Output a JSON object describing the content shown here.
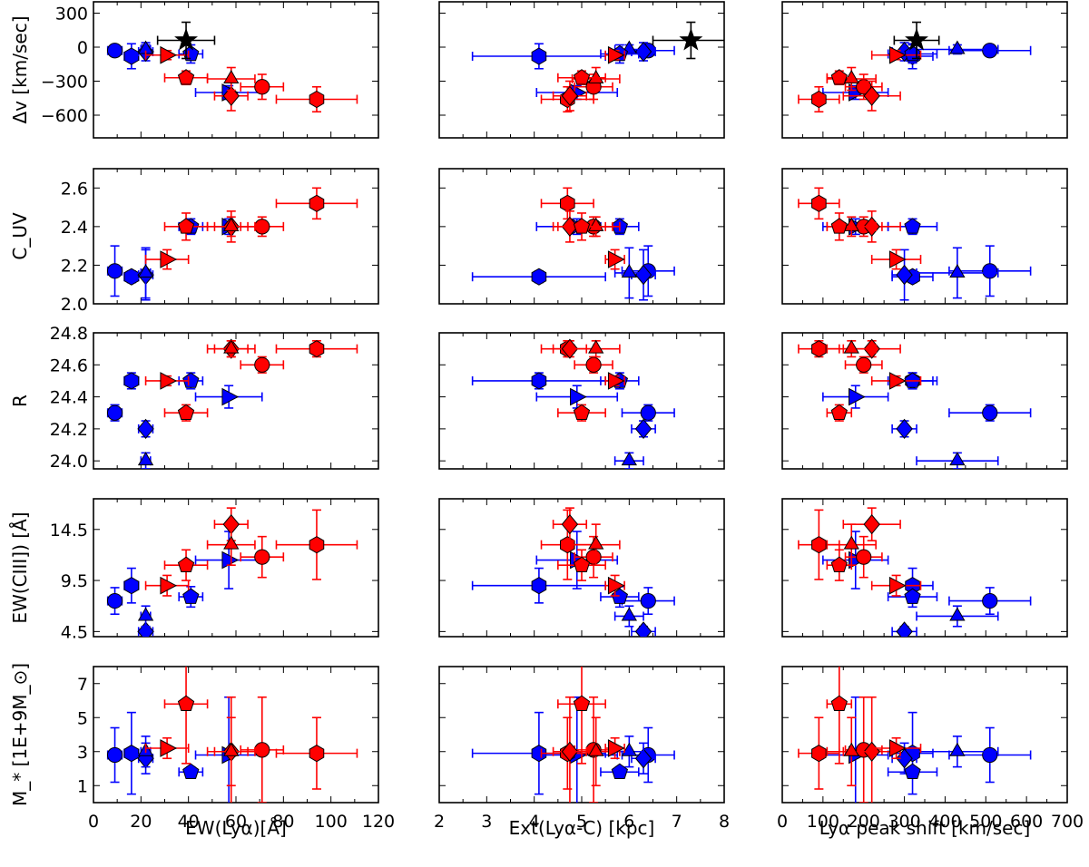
{
  "figure": {
    "colors": {
      "red": "#ff0000",
      "blue": "#0000ff",
      "black": "#000000"
    },
    "x_labels": [
      "EW(Lyα)[Å]",
      "Ext(Lyα-C) [kpc]",
      "Lyα peak shift [km/sec]"
    ],
    "y_labels": [
      "Δv [km/sec]",
      "C_UV",
      "R",
      "EW(CIII]) [Å]",
      "M_* [1E+9M_⊙]"
    ]
  },
  "chart_data": {
    "type": "scatter",
    "layout": "5 rows x 3 columns of scatter panels with shared x axes per column and shared y axes per row",
    "x_axes": [
      {
        "label": "EW(Lyα)[Å]",
        "lim": [
          0,
          120
        ],
        "ticks": [
          0,
          20,
          40,
          60,
          80,
          100,
          120
        ],
        "tick_labels": [
          "0",
          "20",
          "40",
          "60",
          "80",
          "100",
          "120"
        ]
      },
      {
        "label": "Ext(Lyα-C) [kpc]",
        "lim": [
          2,
          8
        ],
        "ticks": [
          2,
          3,
          4,
          5,
          6,
          7,
          8
        ],
        "tick_labels": [
          "2",
          "3",
          "4",
          "5",
          "6",
          "7",
          "8"
        ]
      },
      {
        "label": "Lyα peak shift [km/sec]",
        "lim": [
          0,
          700
        ],
        "ticks": [
          0,
          100,
          200,
          300,
          400,
          500,
          600,
          700
        ],
        "tick_labels": [
          "0",
          "100",
          "200",
          "300",
          "400",
          "500",
          "600",
          "700"
        ]
      }
    ],
    "y_axes": [
      {
        "label": "Δv [km/sec]",
        "lim": [
          -800,
          400
        ],
        "ticks": [
          -600,
          -300,
          0,
          300
        ],
        "tick_labels": [
          "−600",
          "−300",
          "0",
          "300"
        ]
      },
      {
        "label": "C_UV",
        "lim": [
          2.0,
          2.7
        ],
        "ticks": [
          2.0,
          2.2,
          2.4,
          2.6
        ],
        "tick_labels": [
          "2.0",
          "2.2",
          "2.4",
          "2.6"
        ]
      },
      {
        "label": "R",
        "lim": [
          23.95,
          24.8
        ],
        "ticks": [
          24.0,
          24.2,
          24.4,
          24.6,
          24.8
        ],
        "tick_labels": [
          "24.0",
          "24.2",
          "24.4",
          "24.6",
          "24.8"
        ]
      },
      {
        "label": "EW(CIII]) [Å]",
        "lim": [
          4.0,
          17.5
        ],
        "ticks": [
          4.5,
          9.5,
          14.5
        ],
        "tick_labels": [
          "4.5",
          "9.5",
          "14.5"
        ]
      },
      {
        "label": "M_* [1E+9M_⊙]",
        "lim": [
          0,
          8
        ],
        "ticks": [
          1,
          3,
          5,
          7
        ],
        "tick_labels": [
          "1",
          "3",
          "5",
          "7"
        ]
      }
    ],
    "objects": [
      {
        "id": "B-circle",
        "color": "blue",
        "marker": "circle",
        "ew": 9,
        "ew_err": 3,
        "ext": 6.4,
        "ext_err": 0.55,
        "shift": 510,
        "shift_err": 100,
        "dv": -30,
        "dv_err": 50,
        "cuv": 2.17,
        "cuv_err": 0.13,
        "R": 24.3,
        "R_err": 0.05,
        "ciii": 7.5,
        "ciii_err": 1.3,
        "mass": 2.8,
        "mass_err": 1.6
      },
      {
        "id": "B-hexagon",
        "color": "blue",
        "marker": "hexagon",
        "ew": 16,
        "ew_err": 3,
        "ext": 4.1,
        "ext_err": 1.4,
        "shift": 320,
        "shift_err": 50,
        "dv": -80,
        "dv_err": 110,
        "cuv": 2.14,
        "cuv_err": 0.03,
        "R": 24.5,
        "R_err": 0.05,
        "ciii": 9.0,
        "ciii_err": 1.7,
        "mass": 2.9,
        "mass_err": 2.4
      },
      {
        "id": "B-diamond",
        "color": "blue",
        "marker": "diamond",
        "ew": 22,
        "ew_err": 3,
        "ext": 6.3,
        "ext_err": 0.25,
        "shift": 300,
        "shift_err": 30,
        "dv": -40,
        "dv_err": 80,
        "cuv": 2.15,
        "cuv_err": 0.13,
        "R": 24.2,
        "R_err": 0.05,
        "ciii": 4.5,
        "ciii_err": 0.5,
        "mass": 2.6,
        "mass_err": 0.9
      },
      {
        "id": "B-triangle",
        "color": "blue",
        "marker": "triangle",
        "ew": 22,
        "ew_err": 2,
        "ext": 6.0,
        "ext_err": 0.3,
        "shift": 430,
        "shift_err": 100,
        "dv": -20,
        "dv_err": 40,
        "cuv": 2.16,
        "cuv_err": 0.13,
        "R": 24.0,
        "R_err": 0.05,
        "ciii": 6.0,
        "ciii_err": 1.0,
        "mass": 3.0,
        "mass_err": 0.9
      },
      {
        "id": "B-pentagon",
        "color": "blue",
        "marker": "pentagon",
        "ew": 41,
        "ew_err": 5,
        "ext": 5.8,
        "ext_err": 0.4,
        "shift": 320,
        "shift_err": 60,
        "dv": -60,
        "dv_err": 80,
        "cuv": 2.4,
        "cuv_err": 0.04,
        "R": 24.5,
        "R_err": 0.05,
        "ciii": 7.9,
        "ciii_err": 1.0,
        "mass": 1.8,
        "mass_err": 0.3
      },
      {
        "id": "B-tri-right",
        "color": "blue",
        "marker": "triangle-right",
        "ew": 57,
        "ew_err": 14,
        "ext": 4.9,
        "ext_err": 0.85,
        "shift": 180,
        "shift_err": 80,
        "dv": -400,
        "dv_err": 60,
        "cuv": 2.4,
        "cuv_err": 0.04,
        "R": 24.4,
        "R_err": 0.07,
        "ciii": 11.5,
        "ciii_err": 2.8,
        "mass": 2.8,
        "mass_err": 3.4
      },
      {
        "id": "R-hexagon",
        "color": "red",
        "marker": "hexagon",
        "ew": 94,
        "ew_err": 17,
        "ext": 4.7,
        "ext_err": 0.55,
        "shift": 90,
        "shift_err": 50,
        "dv": -460,
        "dv_err": 110,
        "cuv": 2.52,
        "cuv_err": 0.08,
        "R": 24.7,
        "R_err": 0.05,
        "ciii": 13.0,
        "ciii_err": 3.4,
        "mass": 2.9,
        "mass_err": 2.1
      },
      {
        "id": "R-circle",
        "color": "red",
        "marker": "circle",
        "ew": 71,
        "ew_err": 9,
        "ext": 5.25,
        "ext_err": 0.4,
        "shift": 200,
        "shift_err": 45,
        "dv": -350,
        "dv_err": 110,
        "cuv": 2.4,
        "cuv_err": 0.05,
        "R": 24.6,
        "R_err": 0.05,
        "ciii": 11.8,
        "ciii_err": 2.0,
        "mass": 3.1,
        "mass_err": 3.1
      },
      {
        "id": "R-diamond",
        "color": "red",
        "marker": "diamond",
        "ew": 58,
        "ew_err": 7,
        "ext": 4.75,
        "ext_err": 0.35,
        "shift": 220,
        "shift_err": 70,
        "dv": -430,
        "dv_err": 130,
        "cuv": 2.4,
        "cuv_err": 0.08,
        "R": 24.7,
        "R_err": 0.05,
        "ciii": 15.0,
        "ciii_err": 1.6,
        "mass": 3.0,
        "mass_err": 3.2
      },
      {
        "id": "R-triangle",
        "color": "red",
        "marker": "triangle",
        "ew": 58,
        "ew_err": 10,
        "ext": 5.3,
        "ext_err": 0.5,
        "shift": 170,
        "shift_err": 60,
        "dv": -280,
        "dv_err": 100,
        "cuv": 2.4,
        "cuv_err": 0.05,
        "R": 24.7,
        "R_err": 0.05,
        "ciii": 13.0,
        "ciii_err": 2.0,
        "mass": 3.0,
        "mass_err": 2.0
      },
      {
        "id": "R-pentagon",
        "color": "red",
        "marker": "pentagon",
        "ew": 39,
        "ew_err": 9,
        "ext": 5.0,
        "ext_err": 0.5,
        "shift": 140,
        "shift_err": 30,
        "dv": -270,
        "dv_err": 60,
        "cuv": 2.4,
        "cuv_err": 0.07,
        "R": 24.3,
        "R_err": 0.05,
        "ciii": 11.0,
        "ciii_err": 1.5,
        "mass": 5.8,
        "mass_err": 3.5
      },
      {
        "id": "R-tri-right",
        "color": "red",
        "marker": "triangle-right",
        "ew": 31,
        "ew_err": 9,
        "ext": 5.7,
        "ext_err": 0.2,
        "shift": 280,
        "shift_err": 60,
        "dv": -70,
        "dv_err": 40,
        "cuv": 2.23,
        "cuv_err": 0.05,
        "R": 24.5,
        "R_err": 0.03,
        "ciii": 9.0,
        "ciii_err": 1.0,
        "mass": 3.2,
        "mass_err": 0.6
      },
      {
        "id": "K-star",
        "color": "black",
        "marker": "star",
        "ew": 39,
        "ew_err": 12,
        "ext": 7.3,
        "ext_err": 0.8,
        "shift": 330,
        "shift_err": 55,
        "dv": 60,
        "dv_err": 160
      }
    ]
  }
}
